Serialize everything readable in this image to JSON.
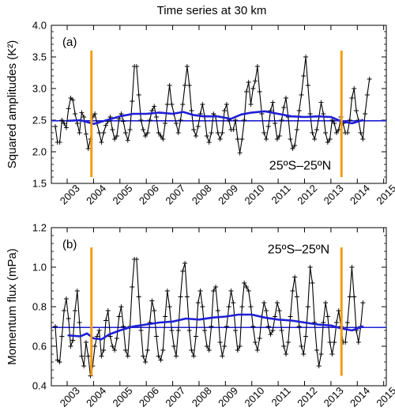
{
  "figure": {
    "title": "Time series at 30 km"
  },
  "chart_data": [
    {
      "type": "line",
      "panel_label": "(a)",
      "annotation": "25ºS–25ºN",
      "ylabel": "Squared amplitudes (K²)",
      "xlim": [
        2002.4,
        2015.1
      ],
      "ylim": [
        1.5,
        4.0
      ],
      "yticks": [
        "1.5",
        "2.0",
        "2.5",
        "3.0",
        "3.5",
        "4.0"
      ],
      "xtick_labels": [
        "2003",
        "2004",
        "2005",
        "2006",
        "2007",
        "2008",
        "2009",
        "2010",
        "2011",
        "2012",
        "2013",
        "2014",
        "2015"
      ],
      "reference_line": 2.49,
      "vertical_markers": [
        {
          "x": 2003.92,
          "y_range": [
            1.6,
            3.6
          ]
        },
        {
          "x": 2013.4,
          "y_range": [
            1.6,
            3.6
          ]
        }
      ],
      "series": [
        {
          "role": "monthly",
          "color": "#000000",
          "marker": "+",
          "x_start": 2002.55,
          "step": 0.0833,
          "values": [
            2.4,
            2.15,
            2.15,
            2.5,
            2.45,
            2.38,
            2.68,
            2.85,
            2.82,
            2.6,
            2.45,
            2.3,
            2.62,
            2.55,
            2.28,
            2.05,
            2.2,
            2.55,
            2.6,
            2.45,
            2.3,
            2.15,
            2.3,
            2.42,
            2.48,
            2.55,
            2.35,
            2.2,
            2.25,
            2.52,
            2.6,
            2.48,
            2.3,
            2.18,
            2.35,
            2.8,
            3.35,
            3.35,
            2.9,
            2.5,
            2.35,
            2.25,
            2.3,
            2.5,
            2.65,
            2.72,
            2.55,
            2.3,
            2.25,
            2.2,
            2.45,
            2.75,
            3.05,
            2.75,
            2.6,
            2.45,
            2.3,
            2.5,
            2.75,
            3.05,
            3.35,
            3.05,
            2.65,
            2.35,
            2.25,
            2.4,
            2.6,
            2.75,
            2.55,
            2.25,
            2.15,
            2.3,
            2.6,
            2.55,
            2.3,
            2.2,
            2.3,
            2.65,
            2.75,
            2.5,
            2.35,
            2.35,
            2.5,
            2.2,
            1.98,
            2.2,
            2.5,
            2.95,
            3.1,
            2.75,
            3.0,
            3.12,
            3.35,
            2.95,
            2.6,
            2.3,
            2.2,
            2.4,
            2.65,
            2.78,
            2.45,
            2.2,
            2.25,
            2.5,
            2.7,
            2.85,
            2.55,
            2.2,
            2.05,
            2.1,
            2.35,
            2.65,
            2.9,
            3.2,
            3.5,
            3.05,
            2.6,
            2.3,
            2.2,
            2.35,
            2.55,
            2.78,
            2.6,
            2.3,
            2.15,
            2.2,
            2.5,
            2.45,
            2.3,
            2.35,
            2.55,
            2.45,
            2.3,
            2.3,
            2.5,
            2.85,
            3.0,
            2.65,
            2.5,
            2.3,
            2.2,
            2.6,
            2.9,
            3.15
          ]
        },
        {
          "role": "running-mean",
          "color": "#1f1fd6",
          "x": [
            2003.05,
            2003.5,
            2004.0,
            2004.5,
            2005.0,
            2005.5,
            2006.0,
            2006.5,
            2007.0,
            2007.4,
            2007.8,
            2008.2,
            2008.7,
            2009.2,
            2009.6,
            2010.0,
            2010.5,
            2011.0,
            2011.5,
            2012.0,
            2012.5,
            2013.0,
            2013.4,
            2013.8,
            2014.2
          ],
          "values": [
            2.49,
            2.5,
            2.44,
            2.5,
            2.56,
            2.6,
            2.6,
            2.62,
            2.6,
            2.63,
            2.58,
            2.56,
            2.56,
            2.52,
            2.59,
            2.62,
            2.64,
            2.6,
            2.56,
            2.55,
            2.56,
            2.55,
            2.48,
            2.45,
            2.5
          ]
        }
      ]
    },
    {
      "type": "line",
      "panel_label": "(b)",
      "annotation": "25ºS–25ºN",
      "ylabel": "Momentum flux (mPa)",
      "xlim": [
        2002.4,
        2015.1
      ],
      "ylim": [
        0.4,
        1.2
      ],
      "yticks": [
        "0.4",
        "0.6",
        "0.8",
        "1.0",
        "1.2"
      ],
      "xtick_labels": [
        "2003",
        "2004",
        "2005",
        "2006",
        "2007",
        "2008",
        "2009",
        "2010",
        "2011",
        "2012",
        "2013",
        "2014",
        "2015"
      ],
      "reference_line": 0.695,
      "vertical_markers": [
        {
          "x": 2003.92,
          "y_range": [
            0.45,
            1.1
          ]
        },
        {
          "x": 2013.4,
          "y_range": [
            0.45,
            1.1
          ]
        }
      ],
      "series": [
        {
          "role": "monthly",
          "color": "#000000",
          "marker": "+",
          "x_start": 2002.55,
          "step": 0.0833,
          "values": [
            0.7,
            0.53,
            0.52,
            0.65,
            0.78,
            0.84,
            0.74,
            0.6,
            0.63,
            0.78,
            0.88,
            0.72,
            0.55,
            0.5,
            0.62,
            0.55,
            0.45,
            0.5,
            0.6,
            0.65,
            0.68,
            0.55,
            0.58,
            0.73,
            0.78,
            0.65,
            0.6,
            0.58,
            0.64,
            0.75,
            0.8,
            0.7,
            0.58,
            0.55,
            0.7,
            0.9,
            1.04,
            1.04,
            0.85,
            0.68,
            0.55,
            0.52,
            0.58,
            0.72,
            0.83,
            0.78,
            0.65,
            0.55,
            0.53,
            0.58,
            0.75,
            0.88,
            0.8,
            0.68,
            0.6,
            0.55,
            0.68,
            0.85,
            0.98,
            1.02,
            0.85,
            0.68,
            0.58,
            0.55,
            0.65,
            0.82,
            0.88,
            0.8,
            0.68,
            0.6,
            0.58,
            0.7,
            0.88,
            0.9,
            0.78,
            0.62,
            0.55,
            0.6,
            0.7,
            0.8,
            0.88,
            0.82,
            0.68,
            0.58,
            0.6,
            0.8,
            0.92,
            0.9,
            0.88,
            0.8,
            0.7,
            0.62,
            0.58,
            0.64,
            0.75,
            0.82,
            0.78,
            0.7,
            0.66,
            0.68,
            0.75,
            0.82,
            0.78,
            0.68,
            0.6,
            0.56,
            0.62,
            0.75,
            0.88,
            0.95,
            0.85,
            0.7,
            0.6,
            0.56,
            0.65,
            0.8,
            1.0,
            0.92,
            0.72,
            0.58,
            0.5,
            0.56,
            0.72,
            0.82,
            0.75,
            0.62,
            0.56,
            0.62,
            0.72,
            0.78,
            0.7,
            0.62,
            0.62,
            0.72,
            0.85,
            1.0,
            0.85,
            0.68,
            0.62,
            0.7,
            0.82
          ]
        },
        {
          "role": "running-mean",
          "color": "#1f1fd6",
          "x": [
            2003.05,
            2003.5,
            2003.75,
            2004.0,
            2004.3,
            2004.6,
            2005.0,
            2005.5,
            2006.0,
            2006.5,
            2007.0,
            2007.5,
            2008.0,
            2008.5,
            2009.0,
            2009.5,
            2010.0,
            2010.5,
            2011.0,
            2011.5,
            2012.0,
            2012.5,
            2013.0,
            2013.4,
            2013.8,
            2014.2
          ],
          "values": [
            0.655,
            0.65,
            0.665,
            0.64,
            0.635,
            0.66,
            0.68,
            0.7,
            0.71,
            0.72,
            0.725,
            0.74,
            0.735,
            0.745,
            0.75,
            0.76,
            0.76,
            0.745,
            0.735,
            0.73,
            0.72,
            0.71,
            0.705,
            0.69,
            0.68,
            0.7
          ]
        }
      ]
    }
  ],
  "colors": {
    "monthly": "#000000",
    "running_mean": "#1f1fd6",
    "reference_line": "#1f1fd6",
    "markers": "#f39c12"
  }
}
